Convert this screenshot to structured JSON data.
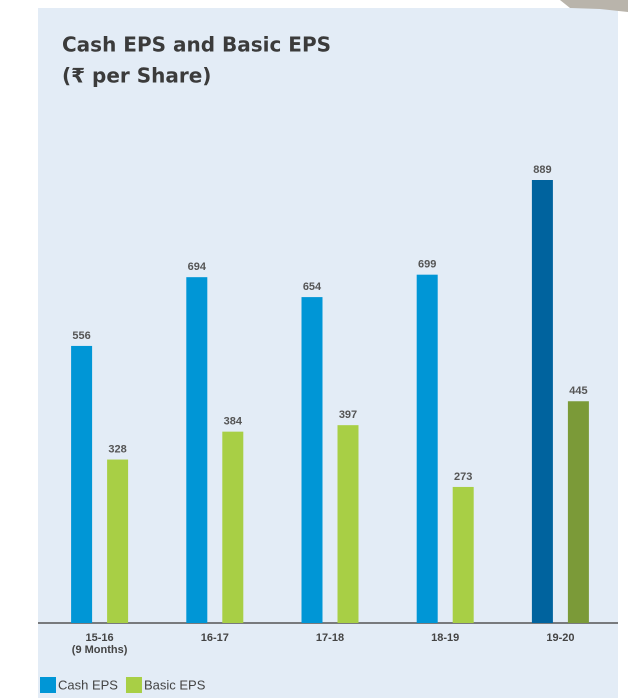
{
  "chart_data": {
    "type": "bar",
    "title": "Cash EPS and Basic EPS",
    "subtitle": "(₹ per Share)",
    "categories": [
      "15-16\n(9 Months)",
      "16-17",
      "17-18",
      "18-19",
      "19-20"
    ],
    "series": [
      {
        "name": "Cash EPS",
        "color": "#0096d6",
        "colors": [
          "#0096d6",
          "#0096d6",
          "#0096d6",
          "#0096d6",
          "#00639e"
        ],
        "values": [
          556,
          694,
          654,
          699,
          889
        ]
      },
      {
        "name": "Basic EPS",
        "color": "#a8cf45",
        "colors": [
          "#a8cf45",
          "#a8cf45",
          "#a8cf45",
          "#a8cf45",
          "#7b9a38"
        ],
        "values": [
          328,
          384,
          397,
          273,
          445
        ]
      }
    ],
    "legend": "bottom-left"
  }
}
